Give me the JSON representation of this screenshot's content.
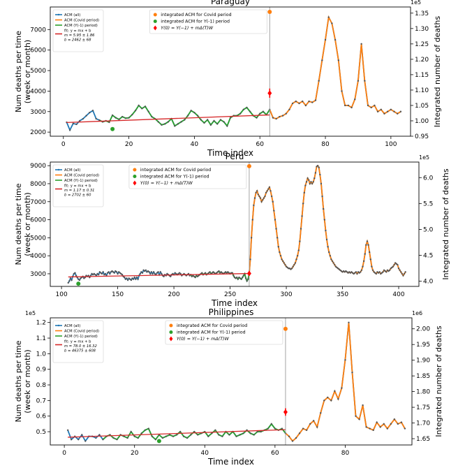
{
  "colors": {
    "blue": "#1f77b4",
    "orange": "#ff7f0e",
    "green": "#2ca02c",
    "red": "#d62728",
    "red_marker": "#ff0000",
    "dot": "#555555",
    "vline": "#999999"
  },
  "legend_left": [
    "ACM (all)",
    "ACM (Covid period)",
    "ACM (Y(-1) period)"
  ],
  "legend_right": [
    "integrated ACM for Covid period",
    "integrated ACM for Y(-1) period",
    "Y(0) = Y(−1) + mΔ(T)W"
  ],
  "chart_data": [
    {
      "type": "line",
      "title": "Paraguay",
      "xlabel": "Time index",
      "ylabel": [
        "Num deaths per time",
        "(week or month)"
      ],
      "y2label": "Integrated number of deaths",
      "y2_multiplier": "1e5",
      "y_multiplier": "",
      "fit_text": [
        "fit: y = mx + b",
        "m = 5.95 ± 1.86",
        "b = 2462 ± 68"
      ],
      "xlim": [
        -4,
        106
      ],
      "ylim": [
        1800,
        8100
      ],
      "y2lim": [
        0.95,
        1.37
      ],
      "xticks": [
        0,
        20,
        40,
        60,
        80,
        100
      ],
      "yticks": [
        2000,
        3000,
        4000,
        5000,
        6000,
        7000
      ],
      "ytick_labels": [
        "2000",
        "3000",
        "4000",
        "5000",
        "6000",
        "7000"
      ],
      "y2ticks": [
        0.95,
        1.0,
        1.05,
        1.1,
        1.15,
        1.2,
        1.25,
        1.3,
        1.35
      ],
      "y2tick_labels": [
        "0.95",
        "1.00",
        "1.05",
        "1.10",
        "1.15",
        "1.20",
        "1.25",
        "1.30",
        "1.35"
      ],
      "x_start": 1,
      "covid_start": 63,
      "values": [
        2480,
        2100,
        2420,
        2380,
        2550,
        2650,
        2800,
        2950,
        3050,
        2650,
        2580,
        2500,
        2550,
        2480,
        2820,
        2700,
        2620,
        2750,
        2680,
        2700,
        2850,
        3050,
        3300,
        3150,
        3250,
        3000,
        2750,
        2650,
        2500,
        2350,
        2400,
        2500,
        2650,
        2300,
        2400,
        2500,
        2600,
        2800,
        3050,
        2950,
        2800,
        2600,
        2450,
        2600,
        2350,
        2550,
        2400,
        2600,
        2500,
        2300,
        2700,
        2800,
        2800,
        2900,
        3100,
        3200,
        3000,
        2800,
        2700,
        2900,
        3000,
        2850,
        3100,
        2700,
        2650,
        2750,
        2800,
        2900,
        3100,
        3400,
        3500,
        3400,
        3500,
        3300,
        3500,
        3450,
        3550,
        4500,
        5500,
        6500,
        7600,
        7300,
        6500,
        5500,
        4000,
        3300,
        3300,
        3200,
        3600,
        4500,
        6300,
        4500,
        3300,
        3200,
        3300,
        3000,
        3100,
        2900,
        3000,
        3100,
        3000,
        2900,
        3000
      ],
      "fit_m": 5.95,
      "fit_b": 2462,
      "fit_x": [
        1,
        63
      ],
      "y1_x": 15,
      "y1_value": 2150,
      "covid_integrated_x": 63,
      "covid_integrated_y2": 1.354,
      "y0_x": 63,
      "y0_y2": 1.09,
      "y0_err": 0.015
    },
    {
      "type": "line",
      "title": "Peru",
      "xlabel": "Time index",
      "ylabel": [
        "Num deaths per time",
        "(week or month)"
      ],
      "y2label": "Integrated number of deaths",
      "y2_multiplier": "1e5",
      "y_multiplier": "",
      "fit_text": [
        "fit: y = mx + b",
        "m = 1.17 ± 0.31",
        "b = 2702 ± 60"
      ],
      "xlim": [
        90,
        418
      ],
      "ylim": [
        2300,
        9200
      ],
      "y2lim": [
        3.9,
        6.3
      ],
      "xticks": [
        100,
        150,
        200,
        250,
        300,
        350,
        400
      ],
      "yticks": [
        3000,
        4000,
        5000,
        6000,
        7000,
        8000,
        9000
      ],
      "ytick_labels": [
        "3000",
        "4000",
        "5000",
        "6000",
        "7000",
        "8000",
        "9000"
      ],
      "y2ticks": [
        4.0,
        4.5,
        5.0,
        5.5,
        6.0
      ],
      "y2tick_labels": [
        "4.0",
        "4.5",
        "5.0",
        "5.5",
        "6.0"
      ],
      "x_start": 106,
      "covid_start": 267,
      "values": [
        2500,
        2600,
        2750,
        2650,
        2850,
        3000,
        3050,
        2900,
        2800,
        2700,
        2650,
        2750,
        2800,
        2850,
        2750,
        2800,
        2900,
        2850,
        2900,
        2800,
        2900,
        3000,
        2950,
        3000,
        2950,
        2900,
        3000,
        2950,
        3100,
        3050,
        3000,
        3100,
        2950,
        3000,
        2900,
        3050,
        3100,
        3000,
        3100,
        3150,
        3100,
        3050,
        3150,
        3100,
        3000,
        3100,
        3050,
        3000,
        2950,
        2850,
        2800,
        2700,
        2750,
        2650,
        2750,
        2700,
        2650,
        2750,
        2700,
        2800,
        2700,
        2800,
        2700,
        2900,
        3000,
        3100,
        3050,
        3200,
        3150,
        3200,
        3100,
        3150,
        3100,
        3000,
        3100,
        3000,
        3100,
        3000,
        2950,
        3050,
        3100,
        2950,
        3100,
        3000,
        2900,
        2850,
        2950,
        2900,
        3000,
        2950,
        2900,
        2850,
        2950,
        3000,
        2950,
        3050,
        3000,
        2950,
        3000,
        3050,
        3000,
        2900,
        2950,
        3000,
        2950,
        2900,
        2950,
        3000,
        2900,
        2950,
        2850,
        2900,
        2850,
        2800,
        2900,
        2850,
        2900,
        2950,
        3000,
        3050,
        2950,
        3000,
        3050,
        2950,
        3000,
        3050,
        3100,
        3000,
        3050,
        3100,
        3050,
        3000,
        3050,
        3100,
        3150,
        3050,
        3100,
        3050,
        3000,
        3050,
        3100,
        3050,
        3100,
        3050,
        3000,
        3050,
        3050,
        2900,
        2800,
        2750,
        2800,
        2700,
        2800,
        2750,
        2700,
        2800,
        2900,
        3000,
        2750,
        2600,
        2700,
        3000,
        3800,
        5000,
        6000,
        6800,
        7200,
        7500,
        7600,
        7400,
        7300,
        7200,
        7000,
        7100,
        7200,
        7300,
        7500,
        7600,
        7700,
        7800,
        7600,
        7300,
        7000,
        6500,
        6000,
        5500,
        5000,
        4500,
        4200,
        4000,
        3800,
        3700,
        3600,
        3500,
        3400,
        3350,
        3300,
        3300,
        3250,
        3300,
        3400,
        3500,
        3600,
        3800,
        4000,
        4300,
        4800,
        5500,
        6200,
        6900,
        7500,
        7900,
        8100,
        8300,
        8200,
        8000,
        8100,
        8000,
        8100,
        8300,
        8600,
        8950,
        9000,
        8900,
        8500,
        8000,
        7300,
        6600,
        6000,
        5400,
        4900,
        4500,
        4200,
        4000,
        3800,
        3700,
        3600,
        3500,
        3400,
        3350,
        3300,
        3250,
        3200,
        3150,
        3100,
        3150,
        3100,
        3150,
        3100,
        3050,
        3100,
        3050,
        3100,
        3050,
        3000,
        3050,
        3100,
        3000,
        3100,
        3050,
        3100,
        3200,
        3400,
        3700,
        4100,
        4600,
        4800,
        4600,
        4200,
        3800,
        3400,
        3200,
        3100,
        3050,
        3000,
        3100,
        3050,
        3100,
        3000,
        3050,
        3100,
        3200,
        3150,
        3100,
        3200,
        3150,
        3200,
        3300,
        3350,
        3400,
        3500,
        3600,
        3550,
        3500,
        3300,
        3200,
        3100,
        3000,
        2900,
        3000,
        3100
      ],
      "fit_m": 1.17,
      "fit_b": 2702,
      "fit_x": [
        106,
        267
      ],
      "y1_x": 115,
      "y1_value": 2450,
      "covid_integrated_x": 267,
      "covid_integrated_y2": 6.22,
      "y0_x": 267,
      "y0_y2": 4.15,
      "y0_err": 0.04
    },
    {
      "type": "line",
      "title": "Philippines",
      "xlabel": "Time index",
      "ylabel": [
        "Num deaths per time",
        "(week or month)"
      ],
      "y2label": "Integrated number of deaths",
      "y2_multiplier": "1e6",
      "y_multiplier": "1e5",
      "fit_text": [
        "fit: y = mx + b",
        "m = 78.0 ± 16.32",
        "b = 46375 ± 608"
      ],
      "xlim": [
        -4,
        99
      ],
      "ylim": [
        0.415,
        1.23
      ],
      "y2lim": [
        1.63,
        2.035
      ],
      "xticks": [
        0,
        20,
        40,
        60,
        80
      ],
      "yticks": [
        0.5,
        0.6,
        0.7,
        0.8,
        0.9,
        1.0,
        1.1,
        1.2
      ],
      "ytick_labels": [
        "0.5",
        "0.6",
        "0.7",
        "0.8",
        "0.9",
        "1.0",
        "1.1",
        "1.2"
      ],
      "y2ticks": [
        1.65,
        1.7,
        1.75,
        1.8,
        1.85,
        1.9,
        1.95,
        2.0
      ],
      "y2tick_labels": [
        "1.65",
        "1.70",
        "1.75",
        "1.80",
        "1.85",
        "1.90",
        "1.95",
        "2.00"
      ],
      "x_start": 1,
      "covid_start": 63,
      "values": [
        0.51,
        0.45,
        0.47,
        0.45,
        0.48,
        0.44,
        0.47,
        0.47,
        0.46,
        0.48,
        0.45,
        0.47,
        0.48,
        0.46,
        0.45,
        0.48,
        0.47,
        0.46,
        0.5,
        0.47,
        0.46,
        0.49,
        0.51,
        0.52,
        0.47,
        0.45,
        0.48,
        0.46,
        0.47,
        0.48,
        0.47,
        0.48,
        0.5,
        0.47,
        0.46,
        0.48,
        0.5,
        0.48,
        0.49,
        0.5,
        0.47,
        0.49,
        0.51,
        0.48,
        0.47,
        0.5,
        0.48,
        0.5,
        0.47,
        0.48,
        0.49,
        0.51,
        0.49,
        0.48,
        0.5,
        0.5,
        0.51,
        0.52,
        0.55,
        0.52,
        0.51,
        0.52,
        0.49,
        0.47,
        0.44,
        0.46,
        0.49,
        0.52,
        0.51,
        0.55,
        0.57,
        0.53,
        0.62,
        0.7,
        0.72,
        0.7,
        0.76,
        0.71,
        0.78,
        0.96,
        1.2,
        0.88,
        0.6,
        0.58,
        0.67,
        0.53,
        0.52,
        0.51,
        0.56,
        0.53,
        0.55,
        0.52,
        0.55,
        0.58,
        0.55,
        0.56,
        0.52
      ],
      "fit_m": 0.00078,
      "fit_b": 0.46375,
      "fit_x": [
        1,
        63
      ],
      "y1_x": 27,
      "y1_value": 0.44,
      "covid_integrated_x": 63,
      "covid_integrated_y2": 2.0,
      "y0_x": 63,
      "y0_y2": 1.735,
      "y0_err": 0.012
    }
  ]
}
